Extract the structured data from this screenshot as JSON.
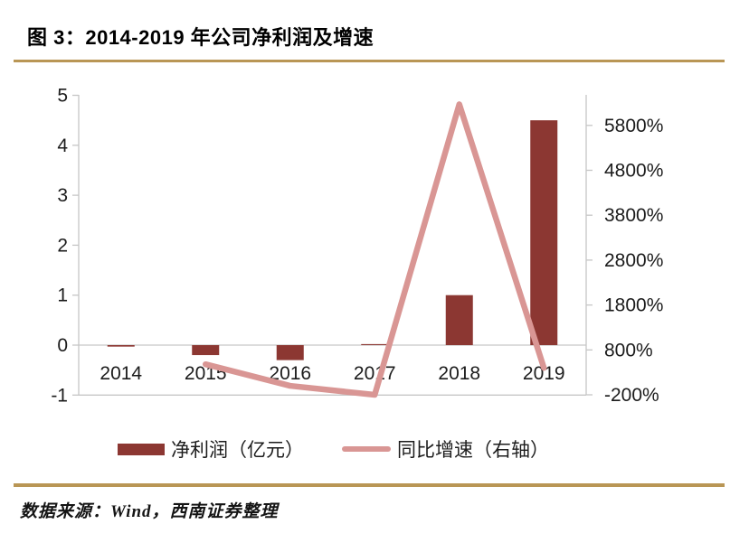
{
  "figure": {
    "title": "图 3：2014-2019 年公司净利润及增速",
    "source_note": "数据来源：Wind，西南证券整理"
  },
  "colors": {
    "bar": "#8c3732",
    "line": "#d99694",
    "gold_rule": "#b99655",
    "axis_line": "#c6c6c6",
    "label_text": "#1c1c1c"
  },
  "legend": {
    "items": [
      {
        "swatch": "bar-swatch",
        "label": "净利润（亿元）"
      },
      {
        "swatch": "line-swatch",
        "label": "同比增速（右轴）"
      }
    ]
  },
  "chart_data": {
    "type": "bar",
    "subtype": "dual-axis bar + line combo",
    "title": "2014-2019 年公司净利润及增速",
    "categories": [
      "2014",
      "2015",
      "2016",
      "2017",
      "2018",
      "2019"
    ],
    "series": [
      {
        "name": "净利润（亿元）",
        "type": "bar",
        "axis": "left",
        "values": [
          -0.03,
          -0.2,
          -0.3,
          0.02,
          1.0,
          4.5
        ]
      },
      {
        "name": "同比增速（右轴）",
        "type": "line",
        "axis": "right",
        "unit": "%",
        "values": [
          null,
          480,
          0,
          -200,
          6270,
          400
        ]
      }
    ],
    "left_axis": {
      "label": "",
      "ticks": [
        5,
        4,
        3,
        2,
        1,
        0,
        -1
      ],
      "range": [
        -1,
        5
      ]
    },
    "right_axis": {
      "label": "",
      "tick_labels": [
        "5800%",
        "4800%",
        "3800%",
        "2800%",
        "1800%",
        "800%",
        "-200%"
      ],
      "range_percent": [
        -200,
        6500
      ]
    },
    "grid": "zero line and bottom border only",
    "legend_position": "bottom",
    "xlabel": "",
    "ylabel": ""
  }
}
